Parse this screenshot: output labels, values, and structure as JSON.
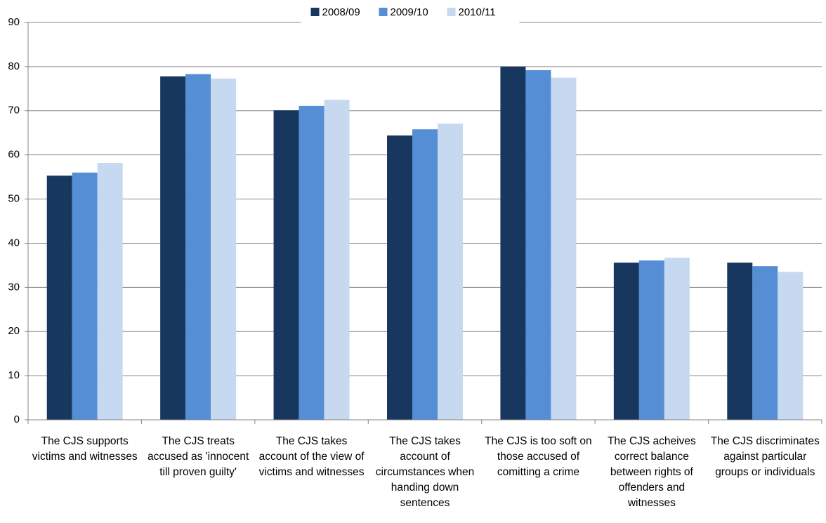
{
  "chart_data": {
    "type": "bar",
    "categories": [
      "The CJS supports victims and witnesses",
      "The CJS treats accused as 'innocent till proven guilty'",
      "The CJS takes account of the view of victims and witnesses",
      "The CJS takes account of circumstances when handing down sentences",
      "The CJS is too soft on those accused of comitting a crime",
      "The CJS acheives correct balance between rights of offenders and witnesses",
      "The CJS discriminates against particular groups or individuals"
    ],
    "series": [
      {
        "name": "2008/09",
        "color": "#17375e",
        "values": [
          55.3,
          77.8,
          70.1,
          64.4,
          80.0,
          35.6,
          35.6
        ]
      },
      {
        "name": "2009/10",
        "color": "#558ed5",
        "values": [
          56.0,
          78.3,
          71.1,
          65.8,
          79.2,
          36.1,
          34.8
        ]
      },
      {
        "name": "2010/11",
        "color": "#c6d9f1",
        "values": [
          58.2,
          77.3,
          72.5,
          67.1,
          77.5,
          36.7,
          33.5
        ]
      }
    ],
    "ylim": [
      0,
      90
    ],
    "yticks": [
      0,
      10,
      20,
      30,
      40,
      50,
      60,
      70,
      80,
      90
    ],
    "grid": true,
    "legend": "top"
  }
}
